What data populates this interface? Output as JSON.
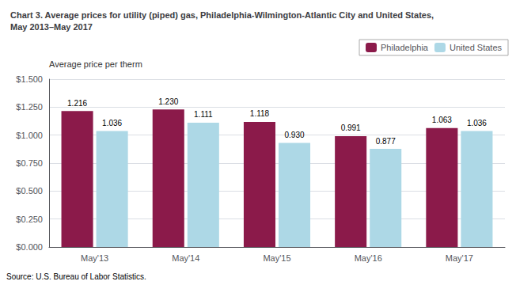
{
  "chart_data": {
    "type": "bar",
    "title": "Chart 3. Average prices for utility (piped) gas, Philadelphia-Wilmington-Atlantic City and United States,\nMay 2013–May 2017",
    "ylabel": "Average price per therm",
    "annotations": [
      "Source: U.S. Bureau of Labor Statistics."
    ],
    "categories": [
      "May'13",
      "May'14",
      "May'15",
      "May'16",
      "May'17"
    ],
    "series": [
      {
        "name": "Philadelphia",
        "color": "#8B1A4A",
        "values": [
          1.216,
          1.23,
          1.118,
          0.991,
          1.063
        ],
        "value_labels": [
          "1.216",
          "1.230",
          "1.118",
          "0.991",
          "1.063"
        ]
      },
      {
        "name": "United States",
        "color": "#ADD8E6",
        "values": [
          1.036,
          1.111,
          0.93,
          0.877,
          1.036
        ],
        "value_labels": [
          "1.036",
          "1.111",
          "0.930",
          "0.877",
          "1.036"
        ]
      }
    ],
    "ylim": [
      0,
      1.5
    ],
    "yticks": [
      {
        "value": 0.0,
        "label": "$0.000"
      },
      {
        "value": 0.25,
        "label": "$0.250"
      },
      {
        "value": 0.5,
        "label": "$0.500"
      },
      {
        "value": 0.75,
        "label": "$0.750"
      },
      {
        "value": 1.0,
        "label": "$1.000"
      },
      {
        "value": 1.25,
        "label": "$1.250"
      },
      {
        "value": 1.5,
        "label": "$1.500"
      }
    ],
    "grid": true,
    "legend": "upper right",
    "data_labels": true
  }
}
